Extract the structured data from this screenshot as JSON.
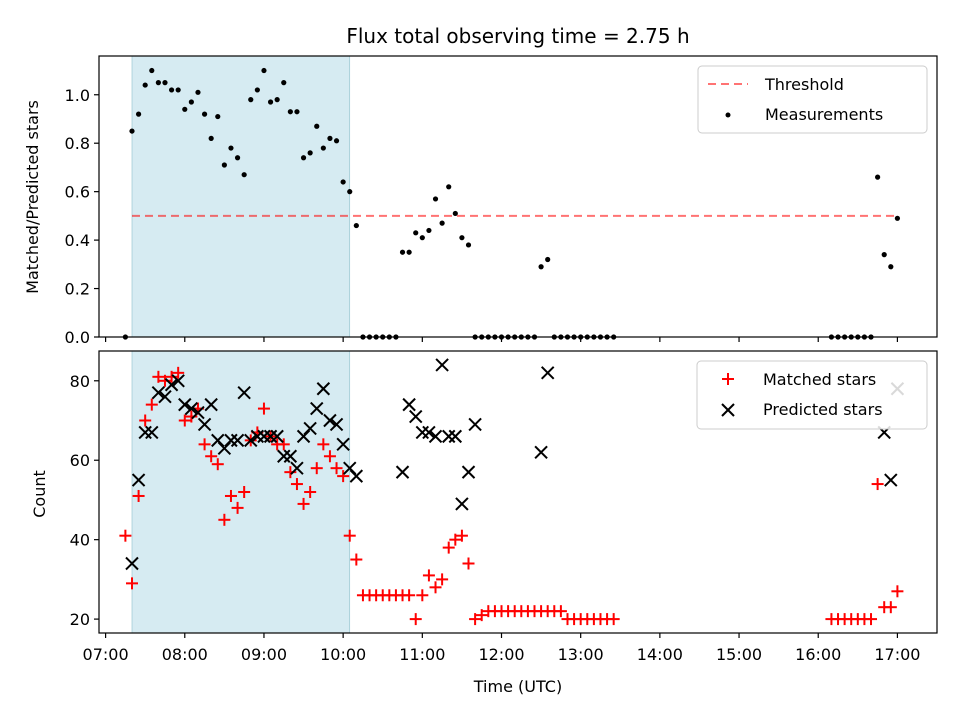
{
  "title": "Flux total observing time = 2.75 h",
  "colors": {
    "shade": "#add8e6",
    "threshold": "#ff0000",
    "measurements": "#000000",
    "matched": "#ff0000",
    "predicted": "#000000"
  },
  "chart_data": [
    {
      "type": "scatter",
      "ylabel": "Matched/Predicted stars",
      "ylim": [
        0,
        1.16
      ],
      "yticks": [
        0.0,
        0.2,
        0.4,
        0.6,
        0.8,
        1.0
      ],
      "ytick_labels": [
        "0.0",
        "0.2",
        "0.4",
        "0.6",
        "0.8",
        "1.0"
      ],
      "xlim": [
        "06:55",
        "17:30"
      ],
      "xticks": [
        "07:00",
        "08:00",
        "09:00",
        "10:00",
        "11:00",
        "12:00",
        "13:00",
        "14:00",
        "15:00",
        "16:00",
        "17:00"
      ],
      "shaded_interval": [
        "07:20",
        "10:05"
      ],
      "legend_position": "upper right",
      "threshold": {
        "name": "Threshold",
        "value": 0.5,
        "x_range": [
          "07:20",
          "17:00"
        ],
        "style": "dashed"
      },
      "series": [
        {
          "name": "Measurements",
          "marker": "dot",
          "x": [
            "07:15",
            "07:20",
            "07:25",
            "07:30",
            "07:35",
            "07:40",
            "07:45",
            "07:50",
            "07:55",
            "08:00",
            "08:05",
            "08:10",
            "08:15",
            "08:20",
            "08:25",
            "08:30",
            "08:35",
            "08:40",
            "08:45",
            "08:50",
            "08:55",
            "09:00",
            "09:05",
            "09:10",
            "09:15",
            "09:20",
            "09:25",
            "09:30",
            "09:35",
            "09:40",
            "09:45",
            "09:50",
            "09:55",
            "10:00",
            "10:05",
            "10:10",
            "10:15",
            "10:20",
            "10:25",
            "10:30",
            "10:35",
            "10:40",
            "10:45",
            "10:50",
            "10:55",
            "11:00",
            "11:05",
            "11:10",
            "11:15",
            "11:20",
            "11:25",
            "11:30",
            "11:35",
            "11:40",
            "11:45",
            "11:50",
            "11:55",
            "12:00",
            "12:05",
            "12:10",
            "12:15",
            "12:20",
            "12:25",
            "12:30",
            "12:35",
            "12:40",
            "12:45",
            "12:50",
            "12:55",
            "13:00",
            "13:05",
            "13:10",
            "13:15",
            "13:20",
            "13:25",
            "16:10",
            "16:15",
            "16:20",
            "16:25",
            "16:30",
            "16:35",
            "16:40",
            "16:45",
            "16:50",
            "16:55",
            "17:00"
          ],
          "y": [
            0.0,
            0.85,
            0.92,
            1.04,
            1.1,
            1.05,
            1.05,
            1.02,
            1.02,
            0.94,
            0.97,
            1.01,
            0.92,
            0.82,
            0.91,
            0.71,
            0.78,
            0.74,
            0.67,
            0.98,
            1.02,
            1.1,
            0.97,
            0.98,
            1.05,
            0.93,
            0.93,
            0.74,
            0.76,
            0.87,
            0.78,
            0.82,
            0.81,
            0.64,
            0.6,
            0.46,
            0.0,
            0.0,
            0.0,
            0.0,
            0.0,
            0.0,
            0.35,
            0.35,
            0.43,
            0.41,
            0.44,
            0.57,
            0.47,
            0.62,
            0.51,
            0.41,
            0.38,
            0.0,
            0.0,
            0.0,
            0.0,
            0.0,
            0.0,
            0.0,
            0.0,
            0.0,
            0.0,
            0.29,
            0.32,
            0.0,
            0.0,
            0.0,
            0.0,
            0.0,
            0.0,
            0.0,
            0.0,
            0.0,
            0.0,
            0.0,
            0.0,
            0.0,
            0.0,
            0.0,
            0.0,
            0.0,
            0.66,
            0.34,
            0.29,
            0.49
          ]
        }
      ]
    },
    {
      "type": "scatter",
      "xlabel": "Time (UTC)",
      "ylabel": "Count",
      "ylim": [
        16.5,
        87.5
      ],
      "yticks": [
        20,
        40,
        60,
        80
      ],
      "ytick_labels": [
        "20",
        "40",
        "60",
        "80"
      ],
      "xlim": [
        "06:55",
        "17:30"
      ],
      "xticks": [
        "07:00",
        "08:00",
        "09:00",
        "10:00",
        "11:00",
        "12:00",
        "13:00",
        "14:00",
        "15:00",
        "16:00",
        "17:00"
      ],
      "xtick_labels": [
        "07:00",
        "08:00",
        "09:00",
        "10:00",
        "11:00",
        "12:00",
        "13:00",
        "14:00",
        "15:00",
        "16:00",
        "17:00"
      ],
      "shaded_interval": [
        "07:20",
        "10:05"
      ],
      "legend_position": "upper right",
      "series": [
        {
          "name": "Matched stars",
          "marker": "plus",
          "x": [
            "07:15",
            "07:20",
            "07:25",
            "07:30",
            "07:35",
            "07:40",
            "07:45",
            "07:50",
            "07:55",
            "08:00",
            "08:05",
            "08:10",
            "08:15",
            "08:20",
            "08:25",
            "08:30",
            "08:35",
            "08:40",
            "08:45",
            "08:50",
            "08:55",
            "09:00",
            "09:05",
            "09:10",
            "09:15",
            "09:20",
            "09:25",
            "09:30",
            "09:35",
            "09:40",
            "09:45",
            "09:50",
            "09:55",
            "10:00",
            "10:05",
            "10:10",
            "10:15",
            "10:20",
            "10:25",
            "10:30",
            "10:35",
            "10:40",
            "10:45",
            "10:50",
            "10:55",
            "11:00",
            "11:05",
            "11:10",
            "11:15",
            "11:20",
            "11:25",
            "11:30",
            "11:35",
            "11:40",
            "11:45",
            "11:50",
            "11:55",
            "12:00",
            "12:05",
            "12:10",
            "12:15",
            "12:20",
            "12:25",
            "12:30",
            "12:35",
            "12:40",
            "12:45",
            "12:50",
            "12:55",
            "13:00",
            "13:05",
            "13:10",
            "13:15",
            "13:20",
            "13:25",
            "16:10",
            "16:15",
            "16:20",
            "16:25",
            "16:30",
            "16:35",
            "16:40",
            "16:45",
            "16:50",
            "16:55",
            "17:00"
          ],
          "y": [
            41,
            29,
            51,
            70,
            74,
            81,
            80,
            81,
            82,
            70,
            71,
            73,
            64,
            61,
            59,
            45,
            51,
            48,
            52,
            65,
            67,
            73,
            66,
            64,
            64,
            57,
            54,
            49,
            52,
            58,
            64,
            61,
            58,
            56,
            41,
            35,
            26,
            26,
            26,
            26,
            26,
            26,
            26,
            26,
            20,
            26,
            31,
            28,
            30,
            38,
            40,
            41,
            34,
            20,
            21,
            22,
            22,
            22,
            22,
            22,
            22,
            22,
            22,
            22,
            22,
            22,
            22,
            20,
            20,
            20,
            20,
            20,
            20,
            20,
            20,
            20,
            20,
            20,
            20,
            20,
            20,
            20,
            54,
            23,
            23,
            27
          ]
        },
        {
          "name": "Predicted stars",
          "marker": "x",
          "x": [
            "07:20",
            "07:25",
            "07:30",
            "07:35",
            "07:40",
            "07:45",
            "07:50",
            "07:55",
            "08:00",
            "08:05",
            "08:10",
            "08:15",
            "08:20",
            "08:25",
            "08:30",
            "08:35",
            "08:40",
            "08:45",
            "08:50",
            "08:55",
            "09:00",
            "09:05",
            "09:10",
            "09:15",
            "09:20",
            "09:25",
            "09:30",
            "09:35",
            "09:40",
            "09:45",
            "09:50",
            "09:55",
            "10:00",
            "10:05",
            "10:10",
            "10:45",
            "10:50",
            "10:55",
            "11:00",
            "11:05",
            "11:10",
            "11:15",
            "11:20",
            "11:25",
            "11:30",
            "11:35",
            "11:40",
            "12:30",
            "12:35",
            "16:50",
            "16:55",
            "17:00"
          ],
          "y": [
            34,
            55,
            67,
            67,
            77,
            76,
            79,
            80,
            74,
            73,
            72,
            69,
            74,
            65,
            63,
            65,
            65,
            77,
            65,
            66,
            66,
            66,
            66,
            61,
            61,
            58,
            66,
            68,
            73,
            78,
            70,
            69,
            64,
            58,
            56,
            57,
            74,
            71,
            67,
            67,
            66,
            84,
            66,
            66,
            49,
            57,
            69,
            62,
            82,
            67,
            55,
            78
          ]
        }
      ]
    }
  ]
}
